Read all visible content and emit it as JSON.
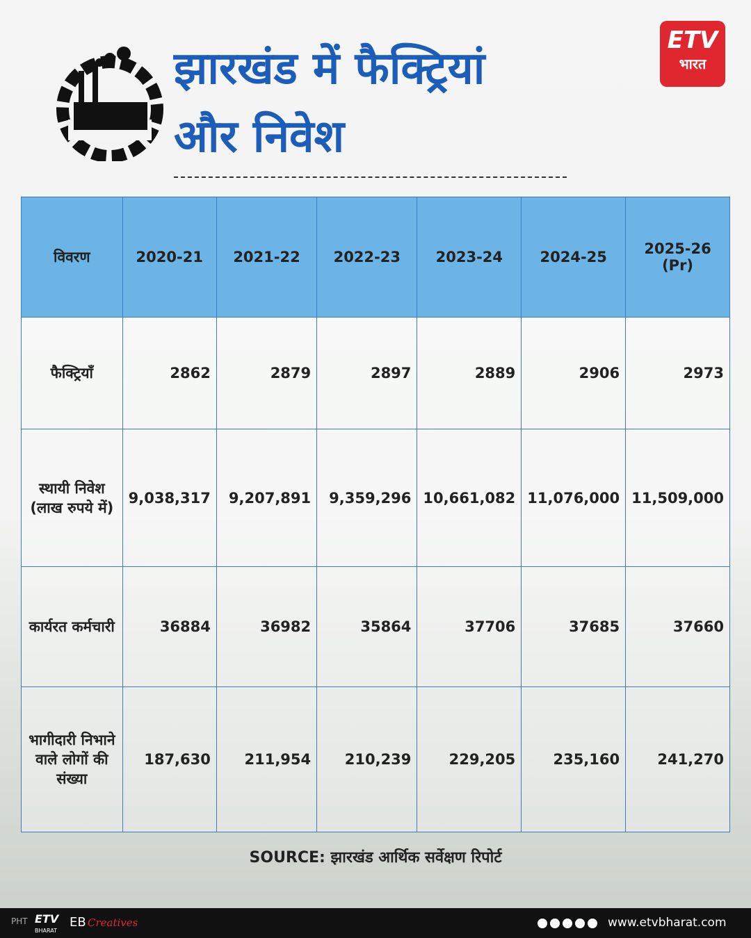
{
  "header": {
    "title_lines": [
      "झारखंड में फैक्ट्रियां",
      "और निवेश"
    ],
    "logo": {
      "mark": "ETV",
      "name": "भारत"
    }
  },
  "table": {
    "header": [
      "विवरण",
      "2020-21",
      "2021-22",
      "2022-23",
      "2023-24",
      "2024-25",
      "2025-26 (Pr)"
    ],
    "rows": [
      [
        "फैक्ट्रियाँ",
        "2862",
        "2879",
        "2897",
        "2889",
        "2906",
        "2973"
      ],
      [
        "स्थायी निवेश (लाख रुपये में)",
        "9,038,317",
        "9,207,891",
        "9,359,296",
        "10,661,082",
        "11,076,000",
        "11,509,000"
      ],
      [
        "कार्यरत कर्मचारी",
        "36884",
        "36982",
        "35864",
        "37706",
        "37685",
        "37660"
      ],
      [
        "भागीदारी निभाने वाले लोगों की संख्या",
        "187,630",
        "211,954",
        "210,239",
        "229,205",
        "235,160",
        "241,270"
      ]
    ]
  },
  "source": "SOURCE: झारखंड आर्थिक सर्वेक्षण रिपोर्ट",
  "footer": {
    "side": "PHT",
    "logo": "ETV",
    "logo_sub": "BHARAT",
    "brand": "EB",
    "brand_script": "Creatives",
    "url": "www.etvbharat.com"
  }
}
